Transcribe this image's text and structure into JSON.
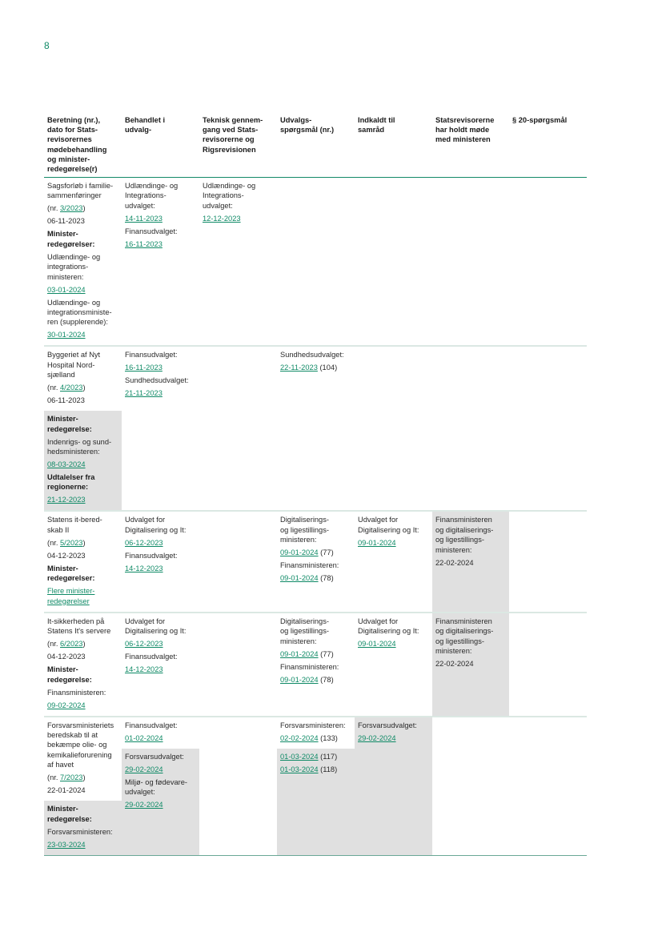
{
  "page_number": "8",
  "colors": {
    "accent": "#0f8a66",
    "shade": "#e0e0e0"
  },
  "headers": [
    "Beretning (nr.),\ndato for Stats-\nrevisorernes\nmødebehandling\nog minister-\nredegørelse(r)",
    "Behandlet i\nudvalg-",
    "Teknisk gennem-\ngang ved Stats-\nrevisorerne og\nRigsrevisionen",
    "Udvalgs-\nspørgsmål (nr.)",
    "Indkaldt til\nsamråd",
    "Statsrevisorerne\nhar holdt møde\nmed ministeren",
    "§ 20-spørgsmål"
  ],
  "rows": [
    {
      "cells": [
        {
          "blocks": [
            {
              "items": [
                {
                  "text": "Sagsforløb i familie-\nsammenføringer"
                },
                {
                  "pre": "(nr. ",
                  "link": "3/2023",
                  "post": ")"
                },
                {
                  "text": "06-11-2023"
                },
                {
                  "text": "Minister-\nredegørelser:",
                  "bold": true
                },
                {
                  "text": "Udlændinge- og\nintegrations-\nministeren:"
                },
                {
                  "link": "03-01-2024"
                },
                {
                  "text": "Udlændinge- og\nintegrationsministe-\nren (supplerende):"
                },
                {
                  "link": "30-01-2024"
                }
              ]
            }
          ]
        },
        {
          "blocks": [
            {
              "items": [
                {
                  "text": "Udlændinge- og\nIntegrations-\nudvalget:"
                },
                {
                  "link": "14-11-2023"
                },
                {
                  "text": "Finansudvalget:"
                },
                {
                  "link": "16-11-2023"
                }
              ]
            }
          ]
        },
        {
          "blocks": [
            {
              "items": [
                {
                  "text": "Udlændinge- og\nIntegrations-\nudvalget:"
                },
                {
                  "link": "12-12-2023"
                }
              ]
            }
          ]
        },
        {
          "blocks": []
        },
        {
          "blocks": []
        },
        {
          "blocks": []
        },
        {
          "blocks": []
        }
      ]
    },
    {
      "cells": [
        {
          "blocks": [
            {
              "items": [
                {
                  "text": "Byggeriet af Nyt\nHospital Nord-\nsjælland"
                },
                {
                  "pre": "(nr. ",
                  "link": "4/2023",
                  "post": ")"
                },
                {
                  "text": "06-11-2023"
                }
              ]
            },
            {
              "shade": true,
              "items": [
                {
                  "text": "Minister-\nredegørelse:",
                  "bold": true
                },
                {
                  "text": "Indenrigs- og sund-\nhedsministeren:"
                },
                {
                  "link": "08-03-2024"
                },
                {
                  "text": "Udtalelser fra\nregionerne:",
                  "bold": true
                },
                {
                  "link": "21-12-2023"
                }
              ]
            }
          ]
        },
        {
          "blocks": [
            {
              "items": [
                {
                  "text": "Finansudvalget:"
                },
                {
                  "link": "16-11-2023"
                },
                {
                  "text": "Sundhedsudvalget:"
                },
                {
                  "link": "21-11-2023"
                }
              ]
            }
          ]
        },
        {
          "blocks": []
        },
        {
          "blocks": [
            {
              "items": [
                {
                  "text": "Sundhedsudvalget:"
                },
                {
                  "link": "22-11-2023",
                  "post": " (104)"
                }
              ]
            }
          ]
        },
        {
          "blocks": []
        },
        {
          "blocks": []
        },
        {
          "blocks": []
        }
      ]
    },
    {
      "cells": [
        {
          "blocks": [
            {
              "items": [
                {
                  "text": "Statens it-bered-\nskab II"
                },
                {
                  "pre": "(nr. ",
                  "link": "5/2023",
                  "post": ")"
                },
                {
                  "text": "04-12-2023"
                },
                {
                  "text": "Minister-\nredegørelser:",
                  "bold": true
                },
                {
                  "link": "Flere minister-\nredegørelser"
                }
              ]
            }
          ]
        },
        {
          "blocks": [
            {
              "items": [
                {
                  "text": "Udvalget for\nDigitalisering og It:"
                },
                {
                  "link": "06-12-2023"
                },
                {
                  "text": "Finansudvalget:"
                },
                {
                  "link": "14-12-2023"
                }
              ]
            }
          ]
        },
        {
          "blocks": []
        },
        {
          "blocks": [
            {
              "items": [
                {
                  "text": "Digitaliserings-\nog ligestillings-\nministeren:"
                },
                {
                  "link": "09-01-2024",
                  "post": " (77)"
                },
                {
                  "text": "Finansministeren:"
                },
                {
                  "link": "09-01-2024",
                  "post": " (78)"
                }
              ]
            }
          ]
        },
        {
          "blocks": [
            {
              "items": [
                {
                  "text": "Udvalget for\nDigitalisering og It:"
                },
                {
                  "link": "09-01-2024"
                }
              ]
            }
          ]
        },
        {
          "shade": true,
          "blocks": [
            {
              "items": [
                {
                  "text": "Finansministeren\nog digitaliserings-\nog ligestillings-\nministeren:"
                },
                {
                  "text": "22-02-2024"
                }
              ]
            }
          ]
        },
        {
          "blocks": []
        }
      ]
    },
    {
      "cells": [
        {
          "blocks": [
            {
              "items": [
                {
                  "text": "It-sikkerheden på\nStatens It's servere"
                },
                {
                  "pre": "(nr. ",
                  "link": "6/2023",
                  "post": ")"
                },
                {
                  "text": "04-12-2023"
                },
                {
                  "text": "Minister-\nredegørelse:",
                  "bold": true
                },
                {
                  "text": "Finansministeren:"
                },
                {
                  "link": "09-02-2024"
                }
              ]
            }
          ]
        },
        {
          "blocks": [
            {
              "items": [
                {
                  "text": "Udvalget for\nDigitalisering og It:"
                },
                {
                  "link": "06-12-2023"
                },
                {
                  "text": "Finansudvalget:"
                },
                {
                  "link": "14-12-2023"
                }
              ]
            }
          ]
        },
        {
          "blocks": []
        },
        {
          "blocks": [
            {
              "items": [
                {
                  "text": "Digitaliserings-\nog ligestillings-\nministeren:"
                },
                {
                  "link": "09-01-2024",
                  "post": " (77)"
                },
                {
                  "text": "Finansministeren:"
                },
                {
                  "link": "09-01-2024",
                  "post": " (78)"
                }
              ]
            }
          ]
        },
        {
          "blocks": [
            {
              "items": [
                {
                  "text": "Udvalget for\nDigitalisering og It:"
                },
                {
                  "link": "09-01-2024"
                }
              ]
            }
          ]
        },
        {
          "shade": true,
          "blocks": [
            {
              "items": [
                {
                  "text": "Finansministeren\nog digitaliserings-\nog ligestillings-\nministeren:"
                },
                {
                  "text": "22-02-2024"
                }
              ]
            }
          ]
        },
        {
          "blocks": []
        }
      ]
    },
    {
      "cells": [
        {
          "blocks": [
            {
              "items": [
                {
                  "text": "Forsvarsministeriets\nberedskab til at\nbekæmpe olie- og\nkemikalieforurening\naf havet"
                },
                {
                  "pre": "(nr. ",
                  "link": "7/2023",
                  "post": ")"
                },
                {
                  "text": "22-01-2024"
                }
              ]
            },
            {
              "shade": true,
              "items": [
                {
                  "text": "Minister-\nredegørelse:",
                  "bold": true
                },
                {
                  "text": "Forsvarsministeren:"
                },
                {
                  "link": "23-03-2024"
                }
              ]
            }
          ]
        },
        {
          "blocks": [
            {
              "items": [
                {
                  "text": "Finansudvalget:"
                },
                {
                  "link": "01-02-2024"
                }
              ]
            },
            {
              "shade": true,
              "items": [
                {
                  "text": "Forsvarsudvalget:"
                },
                {
                  "link": "29-02-2024"
                },
                {
                  "text": "Miljø- og fødevare-\nudvalget:"
                },
                {
                  "link": "29-02-2024"
                }
              ]
            }
          ]
        },
        {
          "blocks": []
        },
        {
          "blocks": [
            {
              "items": [
                {
                  "text": "Forsvarsministeren:"
                },
                {
                  "link": "02-02-2024",
                  "post": " (133)"
                }
              ]
            },
            {
              "shade": true,
              "items": [
                {
                  "link": "01-03-2024",
                  "post": " (117)"
                },
                {
                  "link": "01-03-2024",
                  "post": " (118)"
                }
              ]
            }
          ]
        },
        {
          "shade": true,
          "blocks": [
            {
              "items": [
                {
                  "text": "Forsvarsudvalget:"
                },
                {
                  "link": "29-02-2024"
                }
              ]
            }
          ]
        },
        {
          "blocks": []
        },
        {
          "blocks": []
        }
      ]
    }
  ]
}
